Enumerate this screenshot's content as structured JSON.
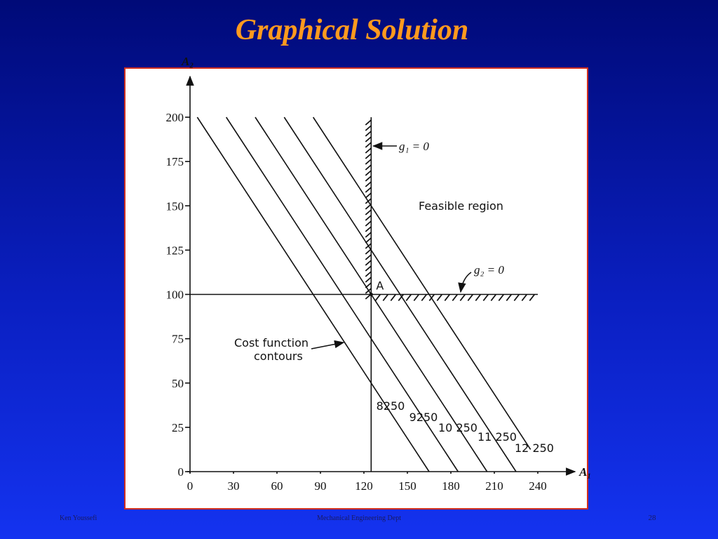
{
  "title": "Graphical Solution",
  "footer": {
    "left": "Ken Youssefi",
    "center": "Mechanical Engineering Dept",
    "right": "28"
  },
  "chart_data": {
    "type": "line",
    "x_label": "A₁",
    "y_label": "A₂",
    "xlim": [
      0,
      256
    ],
    "ylim": [
      0,
      215
    ],
    "xticks": [
      0,
      30,
      60,
      90,
      120,
      150,
      180,
      210,
      240
    ],
    "yticks": [
      0,
      25,
      50,
      75,
      100,
      125,
      150,
      175,
      200
    ],
    "color": "#111111",
    "series": [
      {
        "name": "8250",
        "x": [
          5,
          165
        ],
        "values": [
          200,
          0
        ]
      },
      {
        "name": "9250",
        "x": [
          25,
          185
        ],
        "values": [
          200,
          0
        ]
      },
      {
        "name": "10 250",
        "x": [
          45,
          205
        ],
        "values": [
          200,
          0
        ]
      },
      {
        "name": "11 250",
        "x": [
          65,
          225
        ],
        "values": [
          200,
          0
        ]
      },
      {
        "name": "12 250",
        "x": [
          85,
          235
        ],
        "values": [
          200,
          12.5
        ]
      }
    ],
    "constraints": [
      {
        "name": "g₁ = 0",
        "x": [
          125,
          125
        ],
        "values": [
          0,
          200
        ]
      },
      {
        "name": "g₂ = 0",
        "x": [
          0,
          240
        ],
        "values": [
          100,
          100
        ]
      }
    ],
    "point": {
      "label": "A",
      "x": 125,
      "y": 100
    },
    "annotations": [
      "Feasible region",
      "Cost function",
      "contours"
    ]
  }
}
